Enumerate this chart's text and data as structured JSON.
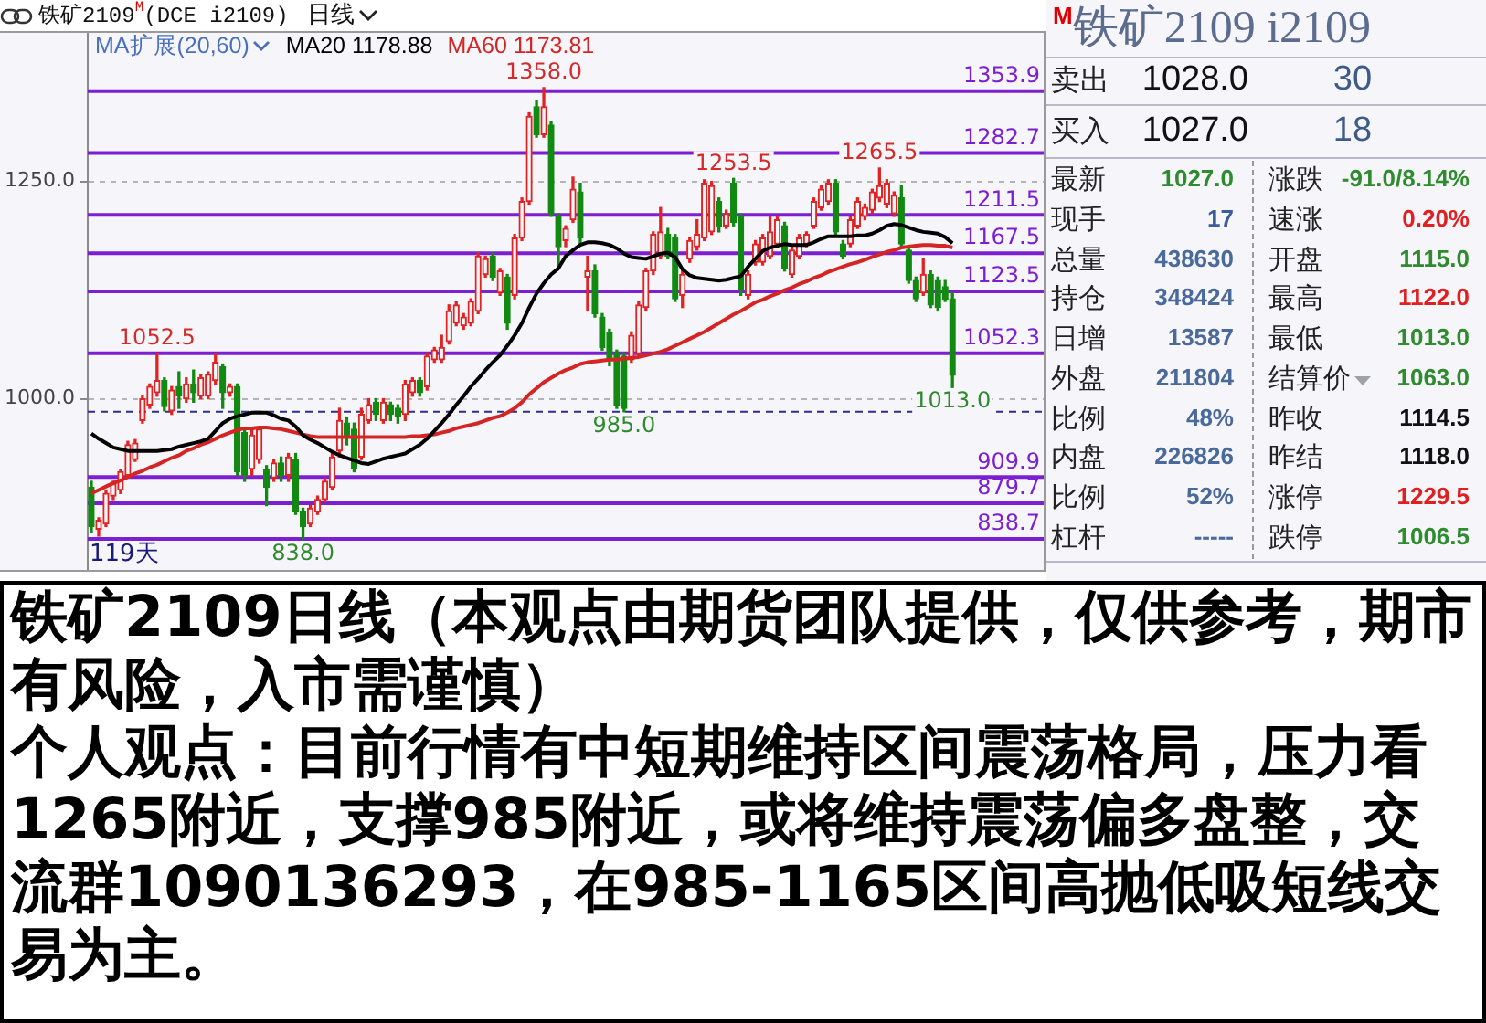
{
  "chart_data": [
    {
      "type": "candlestick",
      "title": "铁矿2109$^{M}$(DCE i2109)",
      "subtitle": "日线",
      "legend_title": "MA扩展(20,60)",
      "categories": [
        null,
        null,
        null,
        null,
        null,
        null,
        null,
        null,
        null,
        null,
        null,
        null,
        null,
        null,
        null,
        null,
        null,
        null,
        null,
        null,
        null,
        null,
        null,
        null,
        null,
        null,
        null,
        null,
        null,
        null,
        null,
        null,
        null,
        null,
        null,
        null,
        null,
        null,
        null,
        null,
        null,
        null,
        null,
        null,
        null,
        null,
        null,
        null,
        null,
        null,
        null,
        null,
        null,
        null,
        null,
        null,
        null,
        null,
        null,
        null,
        null,
        null,
        null,
        null,
        null,
        null,
        null,
        null,
        null,
        null,
        null,
        null,
        null,
        null,
        null,
        null,
        null,
        null,
        null,
        null,
        null,
        null,
        null,
        null,
        null,
        null,
        null,
        null,
        null,
        null,
        null,
        null,
        null,
        null,
        null,
        null,
        null,
        null,
        null,
        null,
        null,
        null,
        null,
        null,
        null,
        null,
        null,
        null,
        null,
        null,
        null,
        null,
        null,
        null,
        null,
        null,
        null,
        null,
        null
      ],
      "ohlc": [
        [
          898,
          905,
          846,
          853
        ],
        [
          850,
          863,
          842,
          860
        ],
        [
          856,
          895,
          853,
          891
        ],
        [
          888,
          905,
          884,
          902
        ],
        [
          895,
          919,
          891,
          916
        ],
        [
          912,
          951,
          909,
          947
        ],
        [
          930,
          953,
          928,
          949
        ],
        [
          975,
          1003,
          972,
          1000
        ],
        [
          993,
          1017,
          989,
          1014
        ],
        [
          1007,
          1052.5,
          1003,
          1021
        ],
        [
          1021,
          1024,
          986,
          991
        ],
        [
          986,
          1014,
          982,
          1010
        ],
        [
          1014,
          1031,
          989,
          1003
        ],
        [
          1000,
          1024,
          996,
          1017
        ],
        [
          1017,
          1033,
          996,
          1007
        ],
        [
          1003,
          1028,
          1000,
          1024
        ],
        [
          1003,
          1031,
          1000,
          1028
        ],
        [
          1021,
          1051,
          1017,
          1042
        ],
        [
          1037,
          1040,
          989,
          1007
        ],
        [
          1007,
          1017,
          1003,
          1014
        ],
        [
          1014,
          1017,
          912,
          916
        ],
        [
          961,
          965,
          905,
          912
        ],
        [
          919,
          965,
          912,
          958
        ],
        [
          930,
          968,
          926,
          965
        ],
        [
          919,
          923,
          877,
          898
        ],
        [
          909,
          930,
          905,
          926
        ],
        [
          926,
          933,
          905,
          912
        ],
        [
          912,
          937,
          905,
          933
        ],
        [
          930,
          937,
          867,
          870
        ],
        [
          870,
          874,
          838,
          853
        ],
        [
          856,
          877,
          853,
          874
        ],
        [
          870,
          888,
          867,
          884
        ],
        [
          884,
          909,
          881,
          905
        ],
        [
          898,
          937,
          895,
          933
        ],
        [
          940,
          989,
          933,
          975
        ],
        [
          972,
          979,
          947,
          958
        ],
        [
          965,
          972,
          916,
          919
        ],
        [
          933,
          989,
          930,
          982
        ],
        [
          975,
          1000,
          972,
          993
        ],
        [
          996,
          1000,
          975,
          982
        ],
        [
          975,
          1000,
          972,
          996
        ],
        [
          993,
          996,
          975,
          982
        ],
        [
          989,
          993,
          972,
          979
        ],
        [
          982,
          1021,
          975,
          1017
        ],
        [
          1007,
          1024,
          1003,
          1021
        ],
        [
          1021,
          1024,
          1003,
          1007
        ],
        [
          1014,
          1052,
          1010,
          1049
        ],
        [
          1045,
          1059,
          1042,
          1056
        ],
        [
          1045,
          1073,
          1042,
          1059
        ],
        [
          1066,
          1108,
          1063,
          1101
        ],
        [
          1087,
          1112,
          1084,
          1108
        ],
        [
          1084,
          1098,
          1080,
          1094
        ],
        [
          1087,
          1115,
          1084,
          1112
        ],
        [
          1101,
          1168,
          1098,
          1164
        ],
        [
          1143,
          1164,
          1140,
          1161
        ],
        [
          1164,
          1168,
          1136,
          1140
        ],
        [
          1122,
          1150,
          1119,
          1147
        ],
        [
          1140,
          1143,
          1080,
          1087
        ],
        [
          1119,
          1189,
          1115,
          1185
        ],
        [
          1185,
          1231,
          1182,
          1227
        ],
        [
          1227,
          1329,
          1224,
          1325
        ],
        [
          1336,
          1343,
          1301,
          1304
        ],
        [
          1304,
          1358,
          1301,
          1336
        ],
        [
          1315,
          1319,
          1210,
          1213
        ],
        [
          1210,
          1213,
          1154,
          1175
        ],
        [
          1182,
          1199,
          1175,
          1196
        ],
        [
          1206,
          1255,
          1203,
          1241
        ],
        [
          1238,
          1248,
          1178,
          1185
        ],
        [
          1140,
          1164,
          1101,
          1147
        ],
        [
          1147,
          1154,
          1094,
          1098
        ],
        [
          1094,
          1098,
          1056,
          1059
        ],
        [
          1077,
          1080,
          1038,
          1045
        ],
        [
          1052,
          1056,
          989,
          993
        ],
        [
          1049,
          1052,
          985,
          989
        ],
        [
          1045,
          1077,
          1042,
          1073
        ],
        [
          1052,
          1112,
          1049,
          1108
        ],
        [
          1105,
          1150,
          1101,
          1147
        ],
        [
          1147,
          1192,
          1143,
          1189
        ],
        [
          1164,
          1220,
          1161,
          1192
        ],
        [
          1189,
          1196,
          1161,
          1164
        ],
        [
          1185,
          1189,
          1112,
          1115
        ],
        [
          1119,
          1147,
          1105,
          1143
        ],
        [
          1161,
          1185,
          1157,
          1182
        ],
        [
          1175,
          1206,
          1171,
          1189
        ],
        [
          1185,
          1252,
          1182,
          1248
        ],
        [
          1192,
          1250,
          1189,
          1245
        ],
        [
          1227,
          1231,
          1192,
          1199
        ],
        [
          1199,
          1217,
          1196,
          1213
        ],
        [
          1248,
          1253.5,
          1199,
          1203
        ],
        [
          1210,
          1213,
          1119,
          1126
        ],
        [
          1119,
          1147,
          1115,
          1143
        ],
        [
          1157,
          1182,
          1154,
          1178
        ],
        [
          1157,
          1189,
          1154,
          1185
        ],
        [
          1164,
          1210,
          1161,
          1192
        ],
        [
          1178,
          1210,
          1175,
          1206
        ],
        [
          1199,
          1203,
          1147,
          1150
        ],
        [
          1143,
          1175,
          1140,
          1171
        ],
        [
          1164,
          1189,
          1161,
          1185
        ],
        [
          1178,
          1192,
          1175,
          1189
        ],
        [
          1199,
          1231,
          1196,
          1227
        ],
        [
          1220,
          1245,
          1217,
          1241
        ],
        [
          1227,
          1252,
          1224,
          1248
        ],
        [
          1248,
          1252,
          1189,
          1192
        ],
        [
          1178,
          1182,
          1161,
          1164
        ],
        [
          1178,
          1210,
          1175,
          1206
        ],
        [
          1199,
          1231,
          1196,
          1227
        ],
        [
          1210,
          1224,
          1206,
          1220
        ],
        [
          1217,
          1241,
          1213,
          1238
        ],
        [
          1231,
          1265.5,
          1227,
          1245
        ],
        [
          1224,
          1252,
          1220,
          1248
        ],
        [
          1213,
          1238,
          1210,
          1234
        ],
        [
          1231,
          1245,
          1175,
          1178
        ],
        [
          1171,
          1175,
          1133,
          1136
        ],
        [
          1136,
          1140,
          1112,
          1115
        ],
        [
          1122,
          1161,
          1119,
          1143
        ],
        [
          1143,
          1147,
          1105,
          1108
        ],
        [
          1136,
          1140,
          1101,
          1105
        ],
        [
          1129,
          1136,
          1112,
          1114.5
        ],
        [
          1115,
          1122,
          1013,
          1027
        ]
      ],
      "colors": [
        "#128a12",
        "#e02424",
        "#e02424",
        "#e02424",
        "#e02424",
        "#e02424",
        "#e02424",
        "#e02424",
        "#e02424",
        "#e02424",
        "#128a12",
        "#e02424",
        "#128a12",
        "#e02424",
        "#128a12",
        "#e02424",
        "#e02424",
        "#e02424",
        "#128a12",
        "#e02424",
        "#128a12",
        "#128a12",
        "#e02424",
        "#e02424",
        "#128a12",
        "#e02424",
        "#128a12",
        "#e02424",
        "#128a12",
        "#128a12",
        "#e02424",
        "#e02424",
        "#e02424",
        "#e02424",
        "#e02424",
        "#128a12",
        "#128a12",
        "#e02424",
        "#e02424",
        "#128a12",
        "#e02424",
        "#128a12",
        "#128a12",
        "#e02424",
        "#e02424",
        "#128a12",
        "#e02424",
        "#e02424",
        "#e02424",
        "#e02424",
        "#e02424",
        "#e02424",
        "#e02424",
        "#e02424",
        "#e02424",
        "#128a12",
        "#e02424",
        "#128a12",
        "#e02424",
        "#e02424",
        "#e02424",
        "#128a12",
        "#e02424",
        "#128a12",
        "#128a12",
        "#e02424",
        "#e02424",
        "#128a12",
        "#e02424",
        "#128a12",
        "#128a12",
        "#128a12",
        "#128a12",
        "#128a12",
        "#e02424",
        "#e02424",
        "#e02424",
        "#e02424",
        "#e02424",
        "#128a12",
        "#128a12",
        "#e02424",
        "#e02424",
        "#e02424",
        "#e02424",
        "#e02424",
        "#128a12",
        "#e02424",
        "#128a12",
        "#128a12",
        "#e02424",
        "#e02424",
        "#e02424",
        "#e02424",
        "#e02424",
        "#128a12",
        "#e02424",
        "#e02424",
        "#e02424",
        "#e02424",
        "#e02424",
        "#e02424",
        "#128a12",
        "#128a12",
        "#e02424",
        "#e02424",
        "#e02424",
        "#e02424",
        "#e02424",
        "#e02424",
        "#e02424",
        "#128a12",
        "#128a12",
        "#128a12",
        "#e02424",
        "#128a12",
        "#128a12",
        "#128a12",
        "#128a12"
      ],
      "series": [
        {
          "type": "line",
          "name": "MA20 1178.88",
          "color": "#000000",
          "values": [
            960,
            954,
            949,
            944,
            942,
            940,
            940,
            940,
            940,
            940,
            941,
            942,
            945,
            947,
            949,
            951,
            954,
            963,
            972,
            977,
            980,
            982,
            984,
            984,
            984,
            981,
            977,
            975,
            968,
            958,
            953,
            949,
            944,
            939,
            935,
            932,
            929,
            926,
            925,
            928,
            931,
            933,
            935,
            937,
            942,
            947,
            954,
            963,
            972,
            982,
            993,
            1003,
            1014,
            1023,
            1033,
            1042,
            1050,
            1061,
            1073,
            1087,
            1105,
            1121,
            1133,
            1143,
            1150,
            1164,
            1171,
            1177,
            1180,
            1180,
            1179,
            1177,
            1173,
            1167,
            1163,
            1162,
            1161,
            1164,
            1167,
            1168,
            1163,
            1149,
            1142,
            1139,
            1138,
            1137,
            1136,
            1137,
            1139,
            1141,
            1152,
            1161,
            1170,
            1174,
            1176,
            1178,
            1177,
            1177,
            1177,
            1180,
            1184,
            1187,
            1187,
            1187,
            1187,
            1188,
            1188,
            1190,
            1194,
            1199,
            1201,
            1200,
            1197,
            1194,
            1192,
            1191,
            1190,
            1186,
            1179
          ]
        },
        {
          "type": "line",
          "name": "MA60 1173.81",
          "color": "#d42424",
          "values": [
            891,
            895,
            899,
            903,
            906,
            910,
            914,
            917,
            921,
            924,
            928,
            932,
            935,
            940,
            943,
            947,
            950,
            954,
            958,
            961,
            964,
            966,
            966,
            967,
            967,
            966,
            965,
            963,
            961,
            959,
            957,
            956,
            956,
            956,
            956,
            956,
            956,
            956,
            956,
            956,
            956,
            956,
            956,
            956,
            957,
            957,
            958,
            959,
            961,
            963,
            966,
            968,
            970,
            972,
            975,
            978,
            980,
            984,
            989,
            996,
            1005,
            1012,
            1019,
            1024,
            1029,
            1033,
            1036,
            1040,
            1042,
            1043,
            1044,
            1045,
            1045,
            1046,
            1047,
            1048,
            1050,
            1052,
            1054,
            1057,
            1061,
            1065,
            1069,
            1073,
            1077,
            1082,
            1087,
            1092,
            1097,
            1101,
            1106,
            1111,
            1114,
            1118,
            1121,
            1125,
            1128,
            1132,
            1135,
            1139,
            1142,
            1146,
            1149,
            1152,
            1155,
            1157,
            1160,
            1163,
            1166,
            1169,
            1171,
            1174,
            1175,
            1176,
            1177,
            1177,
            1176,
            1176,
            1174
          ]
        }
      ],
      "ylim": [
        803,
        1421
      ],
      "yticks": [
        {
          "value": 1000,
          "label": "1000.0"
        },
        {
          "value": 1250,
          "label": "1250.0"
        }
      ],
      "grid": "y",
      "legend": "top left",
      "tick_labels": "y",
      "ref_lines": [
        {
          "axis": "y",
          "value": 1353.9,
          "color": "#7b1fd1"
        },
        {
          "axis": "y",
          "value": 1282.7,
          "color": "#7b1fd1"
        },
        {
          "axis": "y",
          "value": 1211.5,
          "color": "#7b1fd1"
        },
        {
          "axis": "y",
          "value": 1167.5,
          "color": "#7b1fd1"
        },
        {
          "axis": "y",
          "value": 1123.5,
          "color": "#7b1fd1"
        },
        {
          "axis": "y",
          "value": 1052.3,
          "color": "#7b1fd1"
        },
        {
          "axis": "y",
          "value": 909.9,
          "color": "#7b1fd1"
        },
        {
          "axis": "y",
          "value": 879.7,
          "color": "#7b1fd1"
        },
        {
          "axis": "y",
          "value": 838.7,
          "color": "#7b1fd1"
        },
        {
          "axis": "y",
          "value": 985,
          "color": "#2e2e8c",
          "line_style": "dashed"
        }
      ],
      "annotations": [
        {
          "text": "1358.0",
          "y": 1358
        },
        {
          "text": "1253.5",
          "y": 1253.5
        },
        {
          "text": "1265.5",
          "y": 1265.5
        },
        {
          "text": "1052.5",
          "y": 1052.5
        },
        {
          "text": "985.0",
          "y": 985
        },
        {
          "text": "838.0",
          "y": 838
        },
        {
          "text": "1013.0",
          "y": 1013
        },
        {
          "text": "1353.9",
          "y": 1353.9
        },
        {
          "text": "1282.7",
          "y": 1282.7
        },
        {
          "text": "1211.5",
          "y": 1211.5
        },
        {
          "text": "1167.5",
          "y": 1167.5
        },
        {
          "text": "1123.5",
          "y": 1123.5
        },
        {
          "text": "1052.3",
          "y": 1052.3
        },
        {
          "text": "909.9",
          "y": 909.9
        },
        {
          "text": "879.7",
          "y": 879.7
        },
        {
          "text": "838.7",
          "y": 838.7
        },
        "119天"
      ]
    },
    {
      "type": "other",
      "title": "$^{M}$铁矿2109 i2109",
      "annotations": [
        "卖出",
        "1028.0",
        "30",
        "买入",
        "1027.0",
        "18",
        "最新",
        "1027.0",
        "涨跌",
        "-91.0/8.14%",
        "现手",
        "17",
        "速涨",
        "0.20%",
        "总量",
        "438630",
        "开盘",
        "1115.0",
        "持仓",
        "348424",
        "最高",
        "1122.0",
        "日增",
        "13587",
        "最低",
        "1013.0",
        "外盘",
        "211804",
        "结算价",
        "1063.0",
        "比例",
        "48%",
        "昨收",
        "1114.5",
        "内盘",
        "226826",
        "昨结",
        "1118.0",
        "比例",
        "52%",
        "涨停",
        "1229.5",
        "杠杆",
        "-----",
        "跌停",
        "1006.5"
      ]
    },
    {
      "type": "other",
      "annotations": [
        "铁矿2109日线（本观点由期货团队提供，仅供参考，期市有风险，入市需谨慎）",
        "个人观点：目前行情有中短期维持区间震荡格局，压力看1265附近，支撑985附近，或将维持震荡偏多盘整，交流群1090136293，在985-1165区间高抛低吸短线交易为主。"
      ]
    }
  ]
}
